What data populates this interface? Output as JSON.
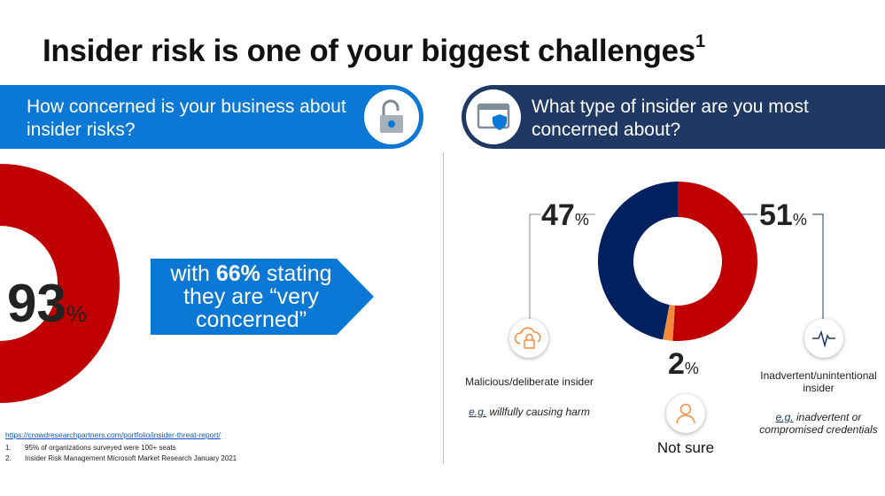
{
  "title": {
    "text": "Insider risk is one of your biggest challenges",
    "sup": "1"
  },
  "left_panel": {
    "question": "How concerned is your business about insider risks?",
    "icon": "padlock-icon",
    "stat_value": "93",
    "stat_unit": "%",
    "arrow_line1_pre": "with ",
    "arrow_line1_bold": "66%",
    "arrow_line1_post": " stating",
    "arrow_line2": "they are “very",
    "arrow_line3": "concerned”",
    "donut_fraction": 0.93,
    "colors": {
      "banner": "#0a78d4",
      "donut": "#c00000",
      "arrow": "#0a78d4"
    }
  },
  "right_panel": {
    "question": "What type of insider are you most concerned about?",
    "icon": "shield-window-icon",
    "segments": [
      {
        "key": "inadvertent",
        "value": 51,
        "color": "#c00000"
      },
      {
        "key": "not_sure",
        "value": 2,
        "color": "#f58a3c"
      },
      {
        "key": "malicious",
        "value": 47,
        "color": "#002060"
      }
    ],
    "malicious": {
      "value": "47",
      "unit": "%",
      "label": "Malicious/deliberate insider",
      "eg_prefix": "e.g.",
      "eg_text": " willfully causing harm",
      "icon": "cloud-lock-icon"
    },
    "inadvertent": {
      "value": "51",
      "unit": "%",
      "label": "Inadvertent/unintentional insider",
      "eg_prefix": "e.g.",
      "eg_text": " inadvertent or compromised credentials",
      "icon": "pulse-icon"
    },
    "not_sure": {
      "value": "2",
      "unit": "%",
      "label": "Not sure",
      "icon": "person-icon"
    },
    "colors": {
      "banner": "#1f3864"
    }
  },
  "footnotes": {
    "link": "https://crowdresearchpartners.com/portfolio/insider-threat-report/",
    "items": [
      {
        "n": "1.",
        "text": "95% of organizations surveyed were 100+ seats"
      },
      {
        "n": "2.",
        "text": "Insider Risk Management Microsoft Market Research January 2021"
      }
    ]
  }
}
